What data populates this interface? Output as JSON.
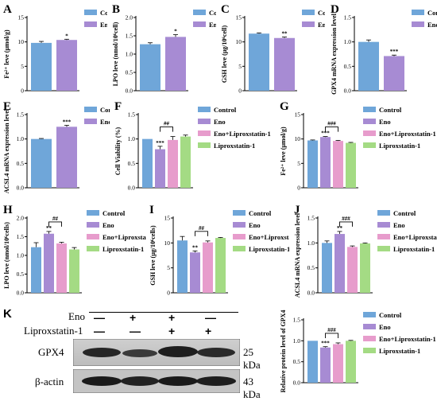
{
  "colors": {
    "control": "#6fa6d9",
    "eno": "#a78bd3",
    "eno_lip": "#e79ccc",
    "lip": "#a4db84",
    "bracket": "#000000"
  },
  "chart_data": [
    {
      "panel": "A",
      "type": "bar",
      "ylabel": "Fe²⁺ leve (μmol/g)",
      "ylim": [
        0,
        15
      ],
      "yticks": [
        0,
        5,
        10,
        15
      ],
      "categories": [
        "Control",
        "Eno"
      ],
      "values": [
        9.8,
        10.4
      ],
      "errors": [
        0.3,
        0.15
      ],
      "stars": [
        "",
        "*"
      ],
      "legend": [
        "Control",
        "Eno"
      ]
    },
    {
      "panel": "B",
      "type": "bar",
      "ylabel": "LPO leve (nmol/10⁶cell)",
      "ylim": [
        0,
        2.0
      ],
      "yticks": [
        0.0,
        0.5,
        1.0,
        1.5,
        2.0
      ],
      "categories": [
        "Control",
        "Eno"
      ],
      "values": [
        1.27,
        1.47
      ],
      "errors": [
        0.04,
        0.06
      ],
      "stars": [
        "",
        "*"
      ],
      "legend": [
        "Control",
        "Eno"
      ]
    },
    {
      "panel": "C",
      "type": "bar",
      "ylabel": "GSH leve (μg/10⁶cell)",
      "ylim": [
        0,
        15
      ],
      "yticks": [
        0,
        5,
        10,
        15
      ],
      "categories": [
        "Control",
        "Eno"
      ],
      "values": [
        11.7,
        10.8
      ],
      "errors": [
        0.15,
        0.2
      ],
      "stars": [
        "",
        "**"
      ],
      "legend": [
        "Control",
        "Eno"
      ]
    },
    {
      "panel": "D",
      "type": "bar",
      "ylabel": "GPX4 mRNA expression level",
      "ylim": [
        0,
        1.5
      ],
      "yticks": [
        0.0,
        0.5,
        1.0,
        1.5
      ],
      "categories": [
        "Control",
        "Eno"
      ],
      "values": [
        1.0,
        0.71
      ],
      "errors": [
        0.04,
        0.02
      ],
      "stars": [
        "",
        "***"
      ],
      "legend": [
        "Control",
        "Eno"
      ]
    },
    {
      "panel": "E",
      "type": "bar",
      "ylabel": "ACSL4 mRNA expression level",
      "ylim": [
        0,
        1.5
      ],
      "yticks": [
        0.0,
        0.5,
        1.0,
        1.5
      ],
      "categories": [
        "Control",
        "Eno"
      ],
      "values": [
        1.0,
        1.25
      ],
      "errors": [
        0.01,
        0.03
      ],
      "stars": [
        "",
        "***"
      ],
      "legend": [
        "Control",
        "Eno"
      ]
    },
    {
      "panel": "F",
      "type": "bar",
      "ylabel": "Cell Viability (%)",
      "ylim": [
        0,
        1.5
      ],
      "yticks": [
        0.0,
        0.5,
        1.0,
        1.5
      ],
      "categories": [
        "Control",
        "Eno",
        "Eno+Liproxstatin-1",
        "Liproxstatin-1"
      ],
      "values": [
        1.0,
        0.79,
        0.98,
        1.05
      ],
      "errors": [
        0.0,
        0.06,
        0.07,
        0.03
      ],
      "stars": [
        "",
        "***",
        "",
        ""
      ],
      "bracket": "##",
      "legend": [
        "Control",
        "Eno",
        "Eno+Liproxstatin-1",
        "Liproxstatin-1"
      ]
    },
    {
      "panel": "G",
      "type": "bar",
      "ylabel": "Fe²⁺ leve (μmol/g)",
      "ylim": [
        0,
        15
      ],
      "yticks": [
        0,
        5,
        10,
        15
      ],
      "categories": [
        "Control",
        "Eno",
        "Eno+Liproxstatin-1",
        "Liproxstatin-1"
      ],
      "values": [
        9.7,
        10.4,
        9.6,
        9.2
      ],
      "errors": [
        0.1,
        0.1,
        0.1,
        0.1
      ],
      "stars": [
        "",
        "***",
        "",
        ""
      ],
      "bracket": "###",
      "legend": [
        "Control",
        "Eno",
        "Eno+Liproxstatin-1",
        "Liproxstatin-1"
      ]
    },
    {
      "panel": "H",
      "type": "bar",
      "ylabel": "LPO leve (nmol/10⁶cells)",
      "ylim": [
        0,
        2.0
      ],
      "yticks": [
        0.0,
        0.5,
        1.0,
        1.5,
        2.0
      ],
      "categories": [
        "Control",
        "Eno",
        "Eno+Liproxstatin-1",
        "Liproxstatin-1"
      ],
      "values": [
        1.22,
        1.58,
        1.32,
        1.16
      ],
      "errors": [
        0.12,
        0.06,
        0.03,
        0.05
      ],
      "stars": [
        "",
        "**",
        "",
        ""
      ],
      "bracket": "##",
      "legend": [
        "Control",
        "Eno",
        "Eno+Liproxstatin-1",
        "Liproxstatin-1"
      ]
    },
    {
      "panel": "I",
      "type": "bar",
      "ylabel": "GSH leve (μg/10⁶cells)",
      "ylim": [
        0,
        15
      ],
      "yticks": [
        0,
        5,
        10,
        15
      ],
      "categories": [
        "Control",
        "Eno",
        "Eno+Liproxstatin-1",
        "Liproxstatin-1"
      ],
      "values": [
        10.5,
        8.1,
        10.1,
        11.0
      ],
      "errors": [
        0.8,
        0.3,
        0.3,
        0.1
      ],
      "stars": [
        "",
        "**",
        "",
        ""
      ],
      "bracket": "##",
      "legend": [
        "Control",
        "Eno",
        "Eno+Liproxstatin-1",
        "Liproxstatin-1"
      ]
    },
    {
      "panel": "J",
      "type": "bar",
      "ylabel": "ACSL4 mRNA expression level",
      "ylim": [
        0,
        1.5
      ],
      "yticks": [
        0.0,
        0.5,
        1.0,
        1.5
      ],
      "categories": [
        "Control",
        "Eno",
        "Eno+Liproxstatin-1",
        "Liproxstatin-1"
      ],
      "values": [
        1.0,
        1.18,
        0.92,
        0.99
      ],
      "errors": [
        0.04,
        0.05,
        0.02,
        0.01
      ],
      "stars": [
        "",
        "**",
        "",
        ""
      ],
      "bracket": "###",
      "legend": [
        "Control",
        "Eno",
        "Eno+Liproxstatin-1",
        "Liproxstatin-1"
      ]
    },
    {
      "panel": "K2",
      "type": "bar",
      "ylabel": "Relative protein level of GPX4",
      "ylim": [
        0,
        1.5
      ],
      "yticks": [
        0.0,
        0.5,
        1.0,
        1.5
      ],
      "categories": [
        "Control",
        "Eno",
        "Eno+Liproxstatin-1",
        "Liproxstatin-1"
      ],
      "values": [
        1.0,
        0.84,
        0.92,
        1.0
      ],
      "errors": [
        0.0,
        0.02,
        0.03,
        0.01
      ],
      "stars": [
        "",
        "***",
        "",
        ""
      ],
      "bracket": "###",
      "legend": [
        "Control",
        "Eno",
        "Eno+Liproxstatin-1",
        "Liproxstatin-1"
      ]
    }
  ],
  "panel_k": {
    "letter": "K",
    "row_labels": [
      "Eno",
      "Liproxstatin-1"
    ],
    "eno_signs": [
      "—",
      "+",
      "+",
      "—"
    ],
    "lip_signs": [
      "—",
      "—",
      "+",
      "+"
    ],
    "bands": [
      "GPX4",
      "β-actin"
    ],
    "sizes": [
      "25 kDa",
      "43 kDa"
    ]
  }
}
